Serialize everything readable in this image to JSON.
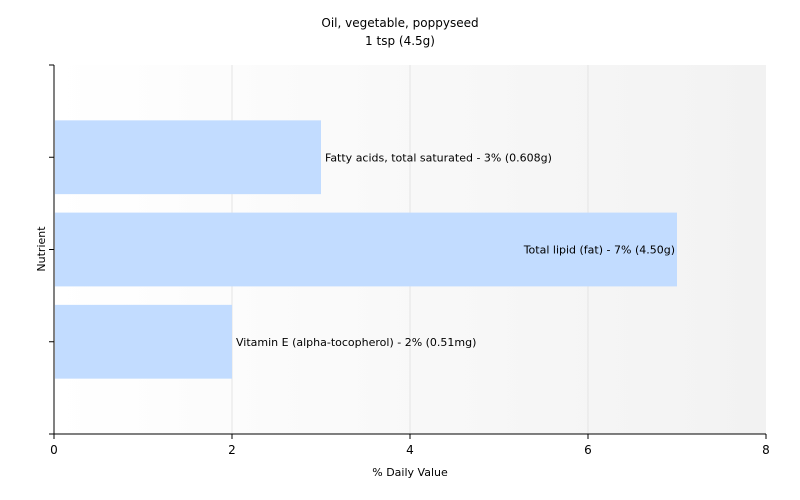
{
  "chart_data": {
    "type": "bar",
    "orientation": "horizontal",
    "title": "Oil, vegetable, poppyseed",
    "subtitle": "1 tsp (4.5g)",
    "xlabel": "% Daily Value",
    "ylabel": "Nutrient",
    "xlim": [
      0,
      8
    ],
    "xticks": [
      "0",
      "2",
      "4",
      "6",
      "8"
    ],
    "grid": true,
    "bar_color": "#c2dcff",
    "bars": [
      {
        "label": "Fatty acids, total saturated - 3% (0.608g)",
        "value": 3
      },
      {
        "label": "Total lipid (fat) - 7% (4.50g)",
        "value": 7
      },
      {
        "label": "Vitamin E (alpha-tocopherol) - 2% (0.51mg)",
        "value": 2
      }
    ]
  }
}
